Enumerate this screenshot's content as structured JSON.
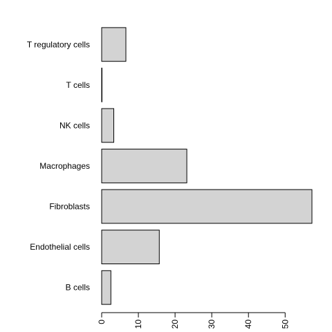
{
  "chart_data": {
    "type": "bar",
    "orientation": "horizontal",
    "categories": [
      "B cells",
      "Endothelial cells",
      "Fibroblasts",
      "Macrophages",
      "NK cells",
      "T cells",
      "T regulatory cells"
    ],
    "values": [
      2.5,
      15.7,
      57.3,
      23.2,
      3.3,
      0.1,
      6.6
    ],
    "xticks": [
      0,
      10,
      20,
      30,
      40,
      50
    ],
    "xlim": [
      0,
      57.3
    ],
    "title": "",
    "xlabel": "",
    "ylabel": "",
    "grid": false,
    "bar_fill": "#d3d3d3",
    "bar_stroke": "#000000"
  }
}
